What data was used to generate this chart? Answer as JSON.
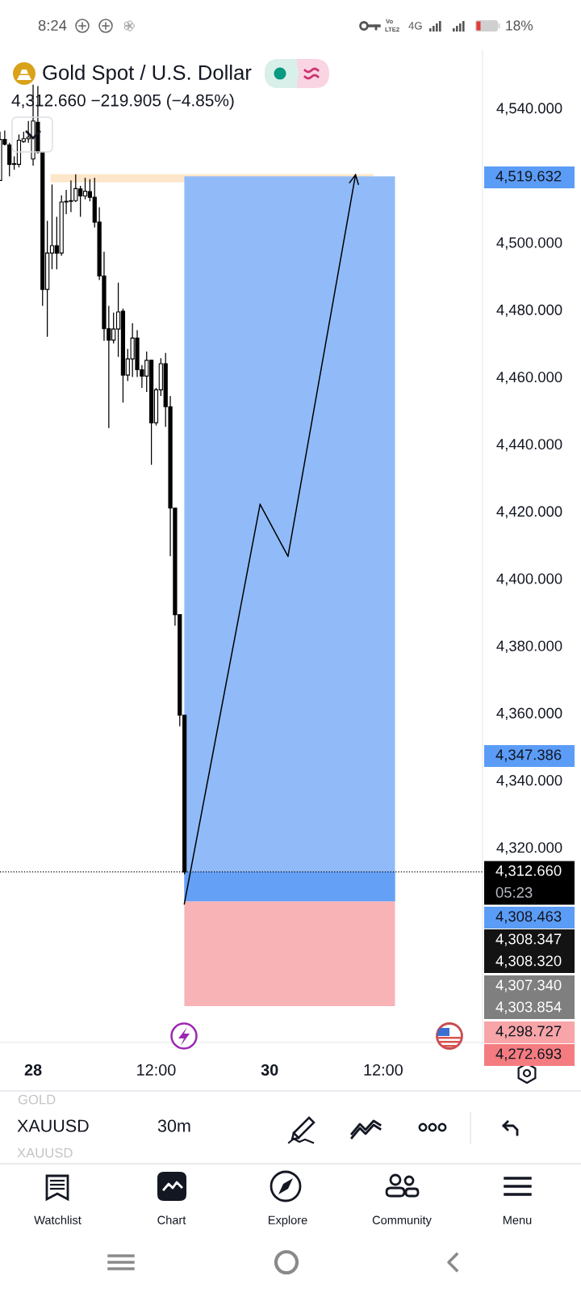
{
  "chart_data": {
    "type": "candlestick",
    "title": "Gold Spot / U.S. Dollar",
    "subtitle": "4,312.660 −219.905 (−4.85%)",
    "categories": [
      null,
      null,
      null,
      null,
      null,
      null,
      null,
      "28",
      null,
      null,
      null,
      null,
      null,
      null,
      null,
      null,
      null,
      null,
      null,
      null,
      null,
      null,
      null,
      null,
      null,
      null,
      null,
      null,
      null,
      null,
      null,
      null,
      null,
      "12:00",
      null,
      null,
      null,
      null,
      null,
      null,
      null,
      null,
      null,
      null,
      null,
      null,
      null,
      null,
      null,
      null,
      null,
      null,
      null,
      null,
      null,
      null,
      null,
      "30",
      null,
      null,
      null,
      null,
      null,
      null,
      null,
      null,
      null,
      null,
      null,
      null,
      null,
      null,
      null,
      null,
      null,
      null,
      null,
      null,
      null,
      null,
      null,
      "12:00",
      null,
      null,
      null,
      null,
      null,
      null,
      null,
      null,
      null,
      null,
      null,
      null,
      null,
      null,
      null,
      null,
      null,
      null,
      null,
      null
    ],
    "ohlc": [
      [
        4518.4,
        4532.9,
        4518.4,
        4530.6
      ],
      [
        4530.6,
        4533.3,
        4528.8,
        4529.2
      ],
      [
        4529.0,
        4529.6,
        4519.6,
        4523.2
      ],
      [
        4523.2,
        4525.6,
        4521.6,
        4523.4
      ],
      [
        4523.2,
        4532.1,
        4522.3,
        4530.4
      ],
      [
        4530.0,
        4532.9,
        4529.6,
        4530.8
      ],
      [
        4530.8,
        4536.1,
        4529.6,
        4531.3
      ],
      [
        4524.8,
        4546.9,
        4522.8,
        4536.1
      ],
      [
        4535.7,
        4546.5,
        4526.4,
        4526.8
      ],
      [
        4526.8,
        4526.8,
        4481.1,
        4486.0
      ],
      [
        4486.0,
        4506.4,
        4471.9,
        4496.8
      ],
      [
        4496.8,
        4517.2,
        4492.0,
        4499.0
      ],
      [
        4499.0,
        4507.6,
        4492.0,
        4496.8
      ],
      [
        4496.8,
        4514.0,
        4496.0,
        4512.0
      ],
      [
        4512.0,
        4515.6,
        4508.4,
        4512.2
      ],
      [
        4512.2,
        4518.4,
        4509.0,
        4512.4
      ],
      [
        4512.4,
        4520.2,
        4512.0,
        4516.0
      ],
      [
        4515.9,
        4516.8,
        4507.6,
        4513.8
      ],
      [
        4513.8,
        4519.2,
        4512.8,
        4515.2
      ],
      [
        4515.1,
        4518.8,
        4512.2,
        4513.4
      ],
      [
        4513.4,
        4519.2,
        4504.4,
        4506.0
      ],
      [
        4506.0,
        4510.4,
        4488.8,
        4490.0
      ],
      [
        4490.0,
        4497.2,
        4470.7,
        4474.3
      ],
      [
        4474.3,
        4481.1,
        4444.7,
        4470.9
      ],
      [
        4470.9,
        4479.1,
        4469.9,
        4474.2
      ],
      [
        4474.2,
        4488.0,
        4465.9,
        4479.3
      ],
      [
        4479.5,
        4480.3,
        4452.3,
        4460.5
      ],
      [
        4460.5,
        4468.3,
        4458.7,
        4465.3
      ],
      [
        4465.3,
        4475.9,
        4459.9,
        4471.5
      ],
      [
        4471.5,
        4473.9,
        4459.9,
        4462.1
      ],
      [
        4462.1,
        4463.5,
        4456.7,
        4460.2
      ],
      [
        4460.2,
        4467.5,
        4455.5,
        4464.9
      ],
      [
        4464.9,
        4465.1,
        4433.8,
        4446.3
      ],
      [
        4446.3,
        4456.7,
        4445.5,
        4456.1
      ],
      [
        4456.1,
        4465.5,
        4454.3,
        4463.9
      ],
      [
        4463.9,
        4467.1,
        4445.1,
        4451.1
      ],
      [
        4451.1,
        4454.3,
        4406.6,
        4420.9
      ],
      [
        4420.9,
        4420.9,
        4385.9,
        4389.2
      ],
      [
        4389.2,
        4389.2,
        4356.0,
        4359.3
      ],
      [
        4359.3,
        4359.3,
        4311.9,
        4312.66
      ],
      null,
      null,
      null,
      null,
      null,
      null,
      null,
      null,
      null,
      null,
      null,
      null,
      null,
      null,
      null,
      null,
      null,
      null,
      null,
      null,
      null,
      null,
      null,
      null,
      null,
      null,
      null,
      null,
      null,
      null,
      null,
      null,
      null,
      null,
      null,
      null,
      null,
      null,
      null,
      null,
      null,
      null,
      null,
      null,
      null,
      null,
      null,
      null,
      null,
      null,
      null,
      null,
      null,
      null,
      null,
      null,
      null,
      null,
      null,
      null,
      null,
      null
    ],
    "color": "#000000",
    "colors": [
      "#ffffff",
      "#000000",
      "#000000",
      "#ffffff",
      "#ffffff",
      "#ffffff",
      "#ffffff",
      "#ffffff",
      "#000000",
      "#000000",
      "#ffffff",
      "#ffffff",
      "#000000",
      "#ffffff",
      "#ffffff",
      "#ffffff",
      "#ffffff",
      "#000000",
      "#ffffff",
      "#000000",
      "#000000",
      "#000000",
      "#000000",
      "#000000",
      "#ffffff",
      "#ffffff",
      "#000000",
      "#ffffff",
      "#ffffff",
      "#000000",
      "#000000",
      "#ffffff",
      "#000000",
      "#ffffff",
      "#ffffff",
      "#000000",
      "#000000",
      "#000000",
      "#000000",
      "#000000",
      null,
      null,
      null,
      null,
      null,
      null,
      null,
      null,
      null,
      null,
      null,
      null,
      null,
      null,
      null,
      null,
      null,
      null,
      null,
      null,
      null,
      null,
      null,
      null,
      null,
      null,
      null,
      null,
      null,
      null,
      null,
      null,
      null,
      null,
      null,
      null,
      null,
      null,
      null,
      null,
      null,
      null,
      null,
      null,
      null,
      null,
      null,
      null,
      null,
      null,
      null,
      null,
      null,
      null,
      null,
      null,
      null,
      null,
      null,
      null,
      null,
      null
    ],
    "ylim": [
      4261.9,
      4557.2
    ],
    "yticks": [
      {
        "value": 4540,
        "label": "4,540.000"
      },
      {
        "value": 4500,
        "label": "4,500.000"
      },
      {
        "value": 4480,
        "label": "4,480.000"
      },
      {
        "value": 4460,
        "label": "4,460.000"
      },
      {
        "value": 4440,
        "label": "4,440.000"
      },
      {
        "value": 4420,
        "label": "4,420.000"
      },
      {
        "value": 4400,
        "label": "4,400.000"
      },
      {
        "value": 4380,
        "label": "4,380.000"
      },
      {
        "value": 4360,
        "label": "4,360.000"
      },
      {
        "value": 4340,
        "label": "4,340.000"
      },
      {
        "value": 4320,
        "label": "4,320.000"
      }
    ],
    "bands": [
      {
        "axis": "y",
        "from": 4517.9,
        "to": 4520.3,
        "color": "#fde6c9"
      },
      {
        "axis": "y",
        "from": 4303.854,
        "to": 4519.632,
        "color": "#90bbf8"
      },
      {
        "axis": "y",
        "from": 4303.854,
        "to": 4312.66,
        "color": "#64a0f6"
      },
      {
        "axis": "y",
        "from": 4272.693,
        "to": 4303.854,
        "color": "#f8b3b6"
      }
    ],
    "ref_lines": [
      {
        "axis": "y",
        "value": 4312.66,
        "label": "4,312.660\n05:23",
        "color": "#000000",
        "line_style": "dotted"
      }
    ],
    "annotations": [
      "4,519.632",
      "4,347.386",
      "4,308.463",
      "4,308.347",
      "4,308.320",
      "4,307.340",
      "4,303.854",
      "4,298.727",
      "4,272.693",
      "8:24",
      "Vo",
      "LTE2",
      "4G",
      "18%",
      "GOLD",
      "XAUUSD",
      "30m",
      "XAUUSD",
      "Watchlist",
      "Chart",
      "Explore",
      "Community",
      "Menu"
    ]
  }
}
